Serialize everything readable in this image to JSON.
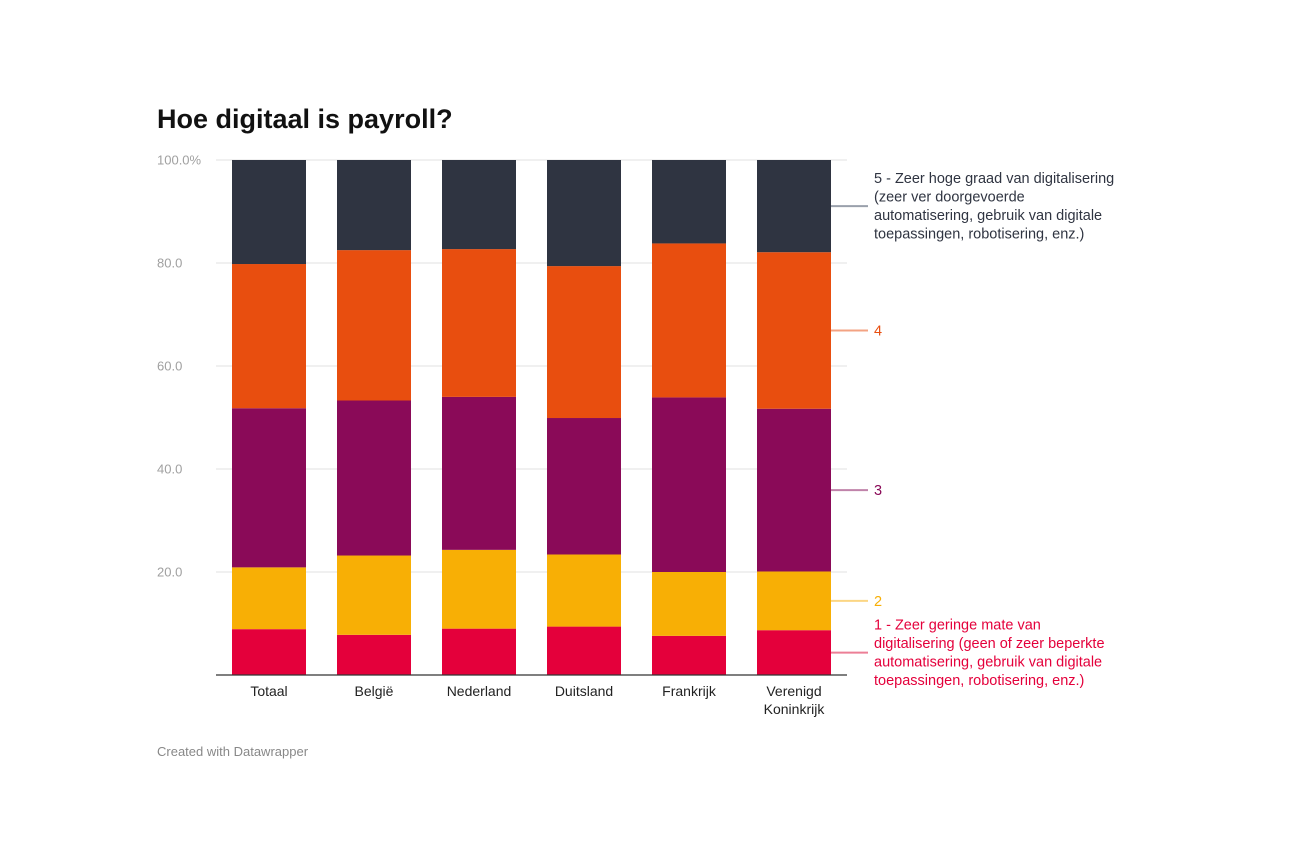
{
  "chart_data": {
    "type": "bar",
    "stacked": true,
    "title": "Hoe digitaal is payroll?",
    "xlabel": "",
    "ylabel": "",
    "ylim": [
      0,
      100
    ],
    "y_ticks": [
      "20.0",
      "40.0",
      "60.0",
      "80.0",
      "100.0%"
    ],
    "y_tick_values": [
      20,
      40,
      60,
      80,
      100
    ],
    "categories": [
      "Totaal",
      "België",
      "Nederland",
      "Duitsland",
      "Frankrijk",
      "Verenigd Koninkrijk"
    ],
    "series": [
      {
        "name": "1 - Zeer geringe mate van digitalisering (geen of zeer beperkte automatisering, gebruik van digitale toepassingen, robotisering, enz.)",
        "legend_lines": [
          "1 - Zeer geringe mate van",
          "digitalisering (geen of zeer beperkte",
          "automatisering, gebruik van digitale",
          "toepassingen, robotisering, enz.)"
        ],
        "color": "#e4003b",
        "line_color": "#ec7f96",
        "values": [
          8.9,
          7.8,
          9.0,
          9.4,
          7.6,
          8.7
        ]
      },
      {
        "name": "2",
        "legend_lines": [
          "2"
        ],
        "color": "#f8af05",
        "line_color": "#fbd684",
        "values": [
          12.0,
          15.4,
          15.3,
          14.0,
          12.4,
          11.4
        ]
      },
      {
        "name": "3",
        "legend_lines": [
          "3"
        ],
        "color": "#8a0a58",
        "line_color": "#c083aa",
        "values": [
          30.9,
          30.1,
          29.7,
          26.5,
          33.9,
          31.6
        ]
      },
      {
        "name": "4",
        "legend_lines": [
          "4"
        ],
        "color": "#e84e0f",
        "line_color": "#f3a383",
        "values": [
          28.0,
          29.2,
          28.7,
          29.5,
          29.9,
          30.4
        ]
      },
      {
        "name": "5 - Zeer hoge graad van digitalisering (zeer ver doorgevoerde automatisering, gebruik van digitale toepassingen, robotisering, enz.)",
        "legend_lines": [
          "5 - Zeer hoge graad van digitalisering",
          "(zeer ver doorgevoerde",
          "automatisering, gebruik van digitale",
          "toepassingen, robotisering, enz.)"
        ],
        "color": "#2f3441",
        "line_color": "#9aa0ab",
        "values": [
          20.2,
          17.5,
          17.3,
          20.6,
          16.2,
          17.9
        ]
      }
    ],
    "legend_position": "right",
    "grid": true
  },
  "footer": {
    "credit": "Created with Datawrapper"
  }
}
